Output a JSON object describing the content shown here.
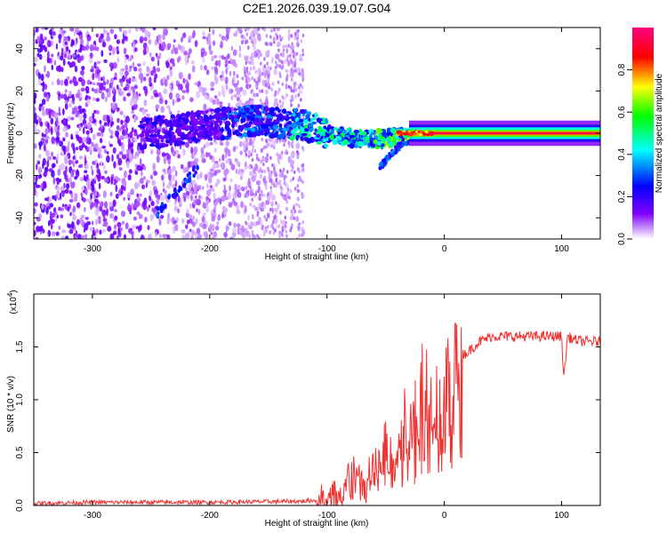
{
  "chart_data": [
    {
      "type": "heatmap",
      "title": "C2E1.2026.039.19.07.G04",
      "xlabel": "Height of straight line (km)",
      "ylabel": "Frequency (Hz)",
      "xlim": [
        -350,
        133
      ],
      "ylim": [
        -50,
        50
      ],
      "xticks": [
        -300,
        -200,
        -100,
        0,
        100
      ],
      "yticks": [
        -40,
        -20,
        0,
        20,
        40
      ],
      "ridge": {
        "x": [
          -350,
          -250,
          -200,
          -160,
          -120,
          -100,
          -80,
          -60,
          -40,
          -20,
          0,
          20,
          60,
          100,
          133
        ],
        "freq": [
          0,
          0,
          4,
          6,
          4,
          0,
          -2,
          -3,
          -2,
          0,
          0,
          0,
          0,
          0,
          0
        ]
      },
      "colorbar": {
        "label": "Normalized spectral amplitude",
        "ticks": [
          0.0,
          0.2,
          0.4,
          0.6,
          0.8
        ],
        "range": [
          0,
          1
        ],
        "colors": [
          "#ffffff",
          "#7f00ff",
          "#0000ff",
          "#00ffff",
          "#00ff00",
          "#ffff00",
          "#ff0000",
          "#ff0080"
        ]
      }
    },
    {
      "type": "line",
      "xlabel": "Height of straight line (km)",
      "ylabel": "SNR (10 * v/v)",
      "scale_label": "(x10",
      "scale_exponent": "4",
      "xlim": [
        -350,
        133
      ],
      "ylim": [
        0,
        2.0
      ],
      "xticks": [
        -300,
        -200,
        -100,
        0,
        100
      ],
      "yticks": [
        0.0,
        0.5,
        1.0,
        1.5
      ],
      "ytick_labels": [
        "0.0",
        "0.5",
        "1.0",
        "1.5"
      ],
      "line_color": "#ee3333",
      "series": {
        "x": [
          -350,
          -300,
          -200,
          -120,
          -100,
          -90,
          -80,
          -70,
          -60,
          -50,
          -40,
          -30,
          -20,
          -10,
          0,
          10,
          20,
          30,
          40,
          60,
          80,
          95,
          100,
          102,
          105,
          110,
          120,
          133
        ],
        "y": [
          0.02,
          0.03,
          0.03,
          0.04,
          0.06,
          0.15,
          0.3,
          0.28,
          0.35,
          0.5,
          0.65,
          0.9,
          1.1,
          1.12,
          0.95,
          1.4,
          1.45,
          1.55,
          1.6,
          1.6,
          1.6,
          1.6,
          1.6,
          1.2,
          1.6,
          1.57,
          1.55,
          1.55
        ]
      }
    }
  ]
}
